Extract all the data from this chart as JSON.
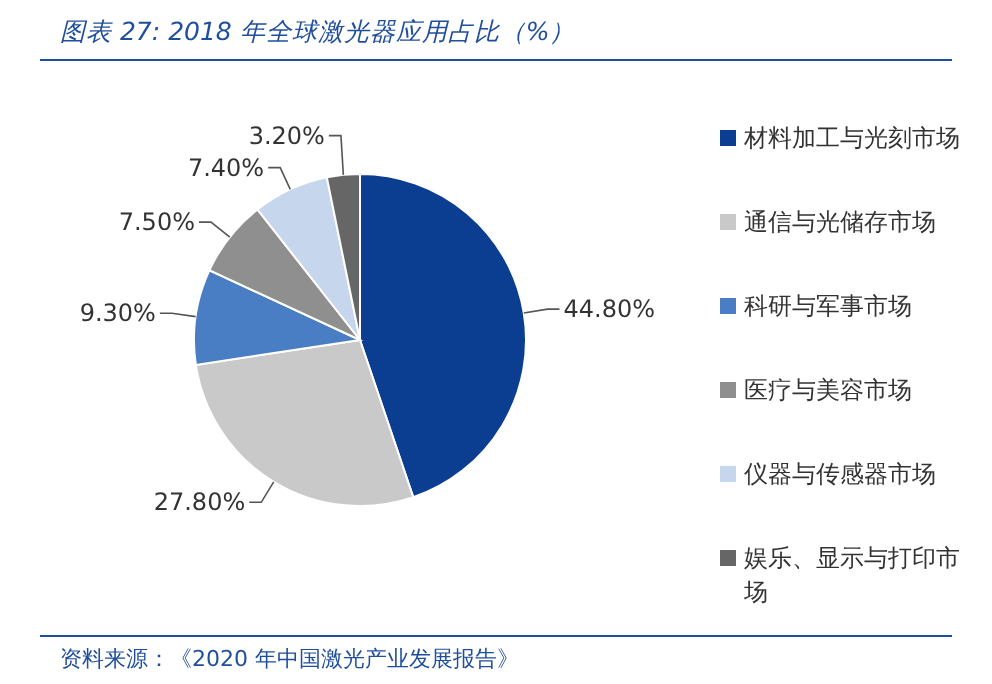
{
  "chart_data": {
    "type": "pie",
    "title": "图表 27:  2018 年全球激光器应用占比（%）",
    "categories": [
      "材料加工与光刻市场",
      "通信与光储存市场",
      "科研与军事市场",
      "医疗与美容市场",
      "仪器与传感器市场",
      "娱乐、显示与打印市场"
    ],
    "values": [
      44.8,
      27.8,
      9.3,
      7.5,
      7.4,
      3.2
    ],
    "colors": [
      "#0b3d91",
      "#c9c9c9",
      "#4a7ec4",
      "#8f8f8f",
      "#c6d6ec",
      "#666666"
    ],
    "value_labels": [
      "44.80%",
      "27.80%",
      "9.30%",
      "7.50%",
      "7.40%",
      "3.20%"
    ],
    "legend": "right",
    "annotations": [
      "资料来源：《2020 年中国激光产业发展报告》"
    ]
  }
}
